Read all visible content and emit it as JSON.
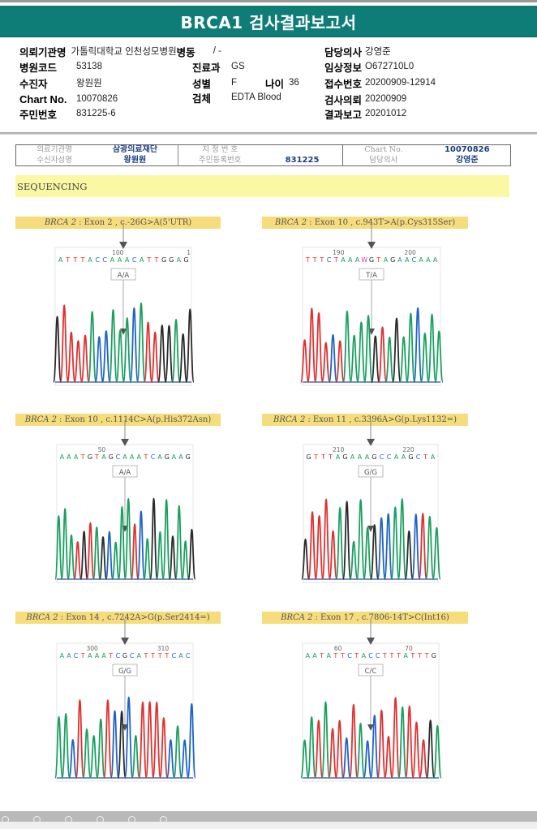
{
  "report": {
    "title": "BRCA1 검사결과보고서",
    "fields": {
      "institution_label": "의뢰기관명",
      "institution_value": "가톨릭대학교 인천성모병원",
      "ward_label": "병동",
      "ward_value": "/ -",
      "doctor_label": "담당의사",
      "doctor_value": "강영준",
      "hospital_code_label": "병원코드",
      "hospital_code_value": "53138",
      "department_label": "진료과",
      "department_value": "GS",
      "clinical_info_label": "임상정보",
      "clinical_info_value": "O672710L0",
      "patient_label": "수진자",
      "patient_value": "왕원원",
      "sex_label": "성별",
      "sex_value": "F",
      "age_label": "나이",
      "age_value": "36",
      "receipt_no_label": "접수번호",
      "receipt_no_value": "20200909-12914",
      "chart_no_label": "Chart No.",
      "chart_no_value": "10070826",
      "specimen_label": "검체",
      "specimen_value": "EDTA Blood",
      "request_date_label": "검사의뢰",
      "request_date_value": "20200909",
      "id_no_label": "주민번호",
      "id_no_value": "831225-6",
      "report_date_label": "결과보고",
      "report_date_value": "20201012"
    }
  },
  "scan_header": {
    "institution_label": "의료기관명",
    "institution_value": "삼광의료재단",
    "designation_label": "지 정 번 호",
    "designation_value": "",
    "chart_label": "Chart No.",
    "chart_value": "10070826",
    "recipient_label": "수신자성명",
    "recipient_value": "왕원원",
    "reg_no_label": "주민등록번호",
    "reg_no_value": "831225",
    "doctor_label": "담당의사",
    "doctor_value": "강영준"
  },
  "section_title": "SEQUENCING",
  "colors": {
    "A": "#1aa060",
    "C": "#1e63c8",
    "G": "#2a2a2a",
    "T": "#e03030",
    "title_bar": "#0e7d78"
  },
  "variants": [
    {
      "gene": "BRCA 2",
      "desc": ": Exon 2 , c.-26G>A(5'UTR)",
      "sequence": "ATTTACCAAACATTGGAG",
      "tick_labels": [
        "100",
        "1"
      ],
      "genotype": "A/A",
      "peaks": "GTTTTACCAAACATTGGAGG"
    },
    {
      "gene": "BRCA 2",
      "desc": ": Exon 10 , c.943T>A(p.Cys315Ser)",
      "sequence": "TTTCTAAAWGTAGAACAAA",
      "tick_labels": [
        "190",
        "200"
      ],
      "genotype": "T/A",
      "peaks": "TTTTCTAAAAGTAGAACAAA"
    },
    {
      "gene": "BRCA 2",
      "desc": ": Exon 10 , c.1114C>A(p.His372Asn)",
      "sequence": "AAATGTAGCAAATCAGAAG",
      "tick_labels": [
        "50"
      ],
      "genotype": "A/A",
      "peaks": "AAATGTAGCAAATCAGAAGAAG"
    },
    {
      "gene": "BRCA 2",
      "desc": ": Exon 11 , c.3396A>G(p.Lys1132=)",
      "sequence": "GTTTAGAAAGCCAAGCTA",
      "tick_labels": [
        "210",
        "220"
      ],
      "genotype": "G/G",
      "peaks": "GTTTTAGAAAGCCAAGCTAA"
    },
    {
      "gene": "BRCA 2",
      "desc": ": Exon 14 , c.7242A>G(p.Ser2414=)",
      "sequence": "AACTAAATCGCATTTTCAC",
      "tick_labels": [
        "300",
        "310"
      ],
      "genotype": "G/G",
      "peaks": "AACTAAATCGCATTTTCACC"
    },
    {
      "gene": "BRCA 2",
      "desc": ": Exon 17 , c.7806-14T>C(Int16)",
      "sequence": "AATATTCTACCTTTATTTG",
      "tick_labels": [
        "60",
        "70"
      ],
      "genotype": "C/C",
      "peaks": "AATATTCTACCTTTATTTGA"
    }
  ]
}
